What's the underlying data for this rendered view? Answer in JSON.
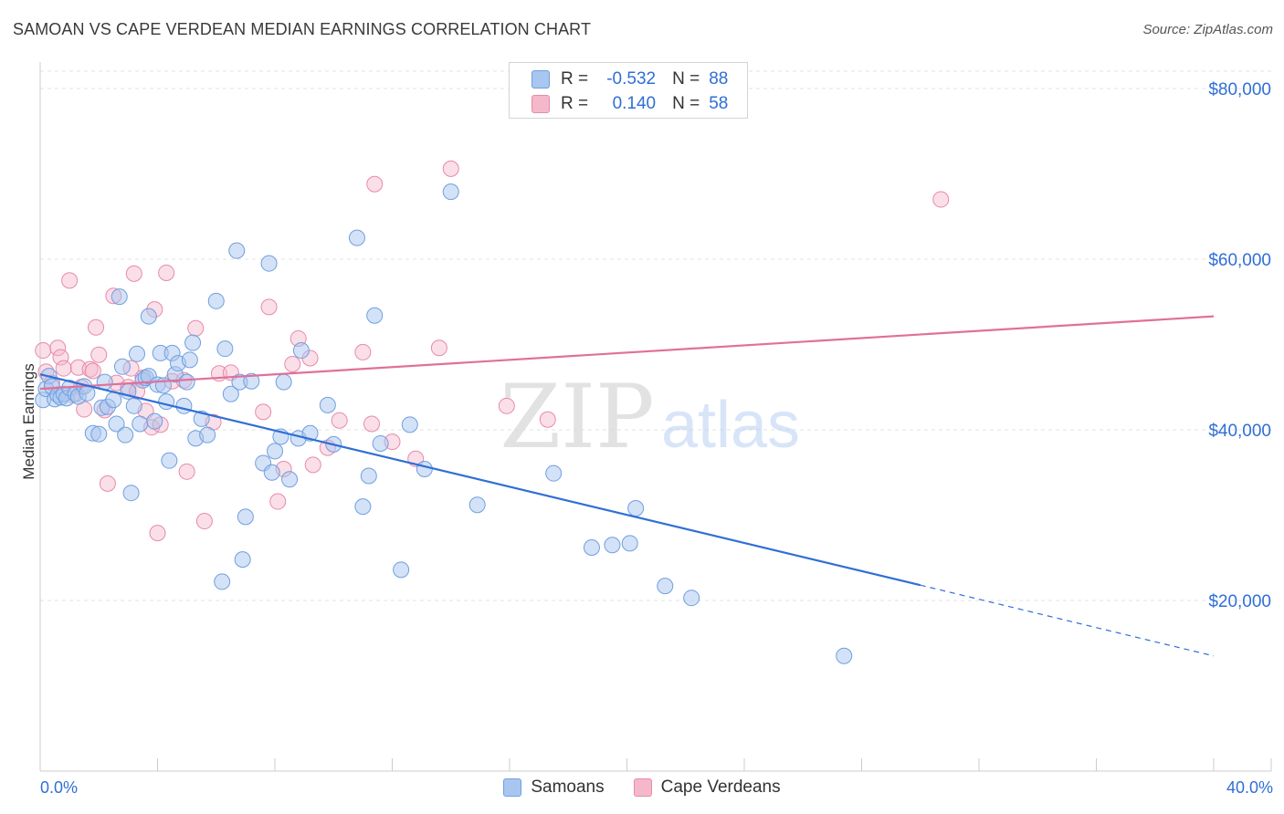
{
  "title": "SAMOAN VS CAPE VERDEAN MEDIAN EARNINGS CORRELATION CHART",
  "source": "Source: ZipAtlas.com",
  "watermark": {
    "zip": "ZIP",
    "atlas": "atlas"
  },
  "legend": {
    "rows": [
      {
        "r_label": "R =",
        "r_value": "-0.532",
        "n_label": "N =",
        "n_value": "88"
      },
      {
        "r_label": "R =",
        "r_value": "0.140",
        "n_label": "N =",
        "n_value": "58"
      }
    ]
  },
  "bottom_legend": {
    "samoans": "Samoans",
    "cape_verdeans": "Cape Verdeans"
  },
  "colors": {
    "blue_fill": "#a9c6f0",
    "blue_stroke": "#6f9fe0",
    "blue_line": "#2f6fd6",
    "pink_fill": "#f5b8cb",
    "pink_stroke": "#e88aa8",
    "pink_line": "#e0709a",
    "accent_text": "#2f6fd6",
    "grid": "#e3e3e3"
  },
  "chart_data": {
    "type": "scatter",
    "title": "SAMOAN VS CAPE VERDEAN MEDIAN EARNINGS CORRELATION CHART",
    "xlabel": "",
    "ylabel": "Median Earnings",
    "xlim": [
      0,
      40
    ],
    "ylim": [
      0,
      82000
    ],
    "x_tick_labels": {
      "left": "0.0%",
      "right": "40.0%"
    },
    "y_ticks": [
      {
        "value": 20000,
        "label": "$20,000"
      },
      {
        "value": 40000,
        "label": "$40,000"
      },
      {
        "value": 60000,
        "label": "$60,000"
      },
      {
        "value": 80000,
        "label": "$80,000"
      }
    ],
    "series": [
      {
        "name": "Samoans",
        "r": -0.532,
        "n": 88,
        "trend": {
          "x0": 0,
          "y0": 46500,
          "x1": 30,
          "y1": 21800,
          "dash_to_x": 40,
          "dash_to_y": 13500
        },
        "points": [
          [
            0.1,
            43500
          ],
          [
            0.2,
            44800
          ],
          [
            0.3,
            46300
          ],
          [
            0.4,
            45100
          ],
          [
            0.5,
            43600
          ],
          [
            0.6,
            44100
          ],
          [
            0.7,
            43800
          ],
          [
            0.8,
            44200
          ],
          [
            0.9,
            43700
          ],
          [
            1.0,
            44900
          ],
          [
            1.2,
            44200
          ],
          [
            1.3,
            43900
          ],
          [
            1.5,
            45100
          ],
          [
            1.6,
            44300
          ],
          [
            1.8,
            39600
          ],
          [
            2.0,
            39500
          ],
          [
            2.1,
            42600
          ],
          [
            2.2,
            45600
          ],
          [
            2.3,
            42700
          ],
          [
            2.5,
            43500
          ],
          [
            2.6,
            40700
          ],
          [
            2.7,
            55600
          ],
          [
            2.8,
            47400
          ],
          [
            2.9,
            39400
          ],
          [
            3.0,
            44500
          ],
          [
            3.1,
            32600
          ],
          [
            3.2,
            42800
          ],
          [
            3.3,
            48900
          ],
          [
            3.4,
            40700
          ],
          [
            3.5,
            45800
          ],
          [
            3.6,
            46100
          ],
          [
            3.7,
            46300
          ],
          [
            3.7,
            53300
          ],
          [
            3.9,
            41000
          ],
          [
            4.0,
            45300
          ],
          [
            4.1,
            49000
          ],
          [
            4.2,
            45200
          ],
          [
            4.3,
            43300
          ],
          [
            4.4,
            36400
          ],
          [
            4.5,
            49000
          ],
          [
            4.6,
            46500
          ],
          [
            4.7,
            47800
          ],
          [
            4.9,
            42800
          ],
          [
            5.0,
            45600
          ],
          [
            5.1,
            48200
          ],
          [
            5.2,
            50200
          ],
          [
            5.3,
            39000
          ],
          [
            5.5,
            41300
          ],
          [
            5.7,
            39400
          ],
          [
            6.0,
            55100
          ],
          [
            6.2,
            22200
          ],
          [
            6.3,
            49500
          ],
          [
            6.5,
            44200
          ],
          [
            6.7,
            61000
          ],
          [
            6.8,
            45600
          ],
          [
            6.9,
            24800
          ],
          [
            7.0,
            29800
          ],
          [
            7.2,
            45700
          ],
          [
            7.6,
            36100
          ],
          [
            7.8,
            59500
          ],
          [
            7.9,
            35000
          ],
          [
            8.0,
            37500
          ],
          [
            8.2,
            39200
          ],
          [
            8.3,
            45600
          ],
          [
            8.5,
            34200
          ],
          [
            8.8,
            39000
          ],
          [
            8.9,
            49300
          ],
          [
            9.2,
            39600
          ],
          [
            9.8,
            42900
          ],
          [
            10.0,
            38300
          ],
          [
            10.8,
            62500
          ],
          [
            11.0,
            31000
          ],
          [
            11.2,
            34600
          ],
          [
            11.4,
            53400
          ],
          [
            11.6,
            38400
          ],
          [
            12.3,
            23600
          ],
          [
            12.6,
            40600
          ],
          [
            13.1,
            35400
          ],
          [
            14.0,
            67900
          ],
          [
            14.9,
            31200
          ],
          [
            17.5,
            34900
          ],
          [
            18.8,
            26200
          ],
          [
            19.5,
            26500
          ],
          [
            20.1,
            26700
          ],
          [
            20.3,
            30800
          ],
          [
            21.3,
            21700
          ],
          [
            22.2,
            20300
          ],
          [
            27.4,
            13500
          ]
        ]
      },
      {
        "name": "Cape Verdeans",
        "r": 0.14,
        "n": 58,
        "trend": {
          "x0": 0,
          "y0": 44800,
          "x1": 40,
          "y1": 53300
        },
        "points": [
          [
            0.1,
            49300
          ],
          [
            0.2,
            46800
          ],
          [
            0.4,
            45500
          ],
          [
            0.6,
            49600
          ],
          [
            0.7,
            48500
          ],
          [
            0.8,
            47200
          ],
          [
            1.0,
            57500
          ],
          [
            1.1,
            44100
          ],
          [
            1.3,
            47300
          ],
          [
            1.4,
            45000
          ],
          [
            1.5,
            42400
          ],
          [
            1.7,
            47100
          ],
          [
            1.8,
            46900
          ],
          [
            1.9,
            52000
          ],
          [
            2.0,
            48800
          ],
          [
            2.2,
            42300
          ],
          [
            2.3,
            33700
          ],
          [
            2.5,
            55700
          ],
          [
            2.6,
            45500
          ],
          [
            3.0,
            45000
          ],
          [
            3.1,
            47200
          ],
          [
            3.2,
            58300
          ],
          [
            3.3,
            44500
          ],
          [
            3.5,
            46100
          ],
          [
            3.6,
            42200
          ],
          [
            3.8,
            40300
          ],
          [
            3.9,
            54100
          ],
          [
            4.0,
            27900
          ],
          [
            4.1,
            40600
          ],
          [
            4.3,
            58400
          ],
          [
            4.5,
            45700
          ],
          [
            4.9,
            45800
          ],
          [
            5.0,
            35100
          ],
          [
            5.3,
            51900
          ],
          [
            5.6,
            29300
          ],
          [
            5.9,
            40900
          ],
          [
            6.1,
            46600
          ],
          [
            6.5,
            46700
          ],
          [
            7.6,
            42100
          ],
          [
            7.8,
            54400
          ],
          [
            8.1,
            31600
          ],
          [
            8.3,
            35400
          ],
          [
            8.6,
            47700
          ],
          [
            8.8,
            50700
          ],
          [
            9.2,
            48400
          ],
          [
            9.3,
            35900
          ],
          [
            9.8,
            37900
          ],
          [
            10.2,
            41100
          ],
          [
            11.0,
            49100
          ],
          [
            11.3,
            40700
          ],
          [
            11.4,
            68800
          ],
          [
            12.0,
            38600
          ],
          [
            12.8,
            36600
          ],
          [
            13.6,
            49600
          ],
          [
            14.0,
            70600
          ],
          [
            15.9,
            42800
          ],
          [
            17.3,
            41200
          ],
          [
            30.7,
            67000
          ]
        ]
      }
    ]
  }
}
